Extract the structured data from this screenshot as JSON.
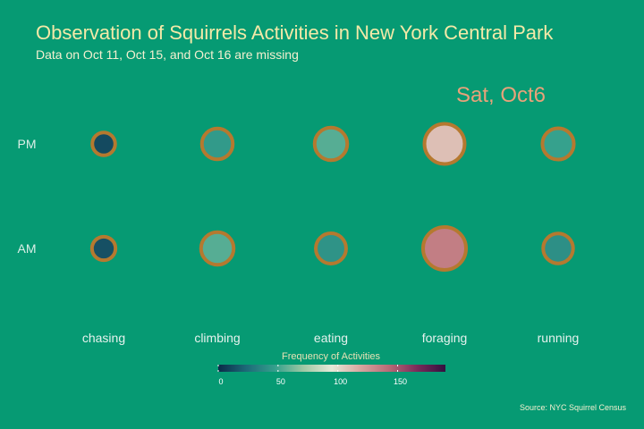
{
  "chart_data": {
    "type": "scatter",
    "title": "Observation of Squirrels Activities in New York Central Park",
    "subtitle": "Data on Oct 11, Oct 15, and Oct 16 are missing",
    "annotation": "Sat, Oct6",
    "caption": "Source: NYC Squirrel Census",
    "categories": [
      "chasing",
      "climbing",
      "eating",
      "foraging",
      "running"
    ],
    "shifts": [
      "PM",
      "AM"
    ],
    "values": {
      "PM": [
        12,
        45,
        55,
        110,
        48
      ],
      "AM": [
        14,
        55,
        42,
        135,
        40
      ]
    },
    "legend": {
      "title": "Frequency of Activities",
      "ticks": [
        0,
        50,
        100,
        150
      ],
      "range": [
        0,
        190
      ]
    },
    "colors": {
      "background": "#069a73",
      "ring": "#b5792f",
      "scale": [
        "#0b2a48",
        "#1d6a78",
        "#34a08c",
        "#9fc8a4",
        "#e6e9d8",
        "#d8a6a0",
        "#b86b77",
        "#7a2a5a",
        "#33113f"
      ]
    }
  }
}
